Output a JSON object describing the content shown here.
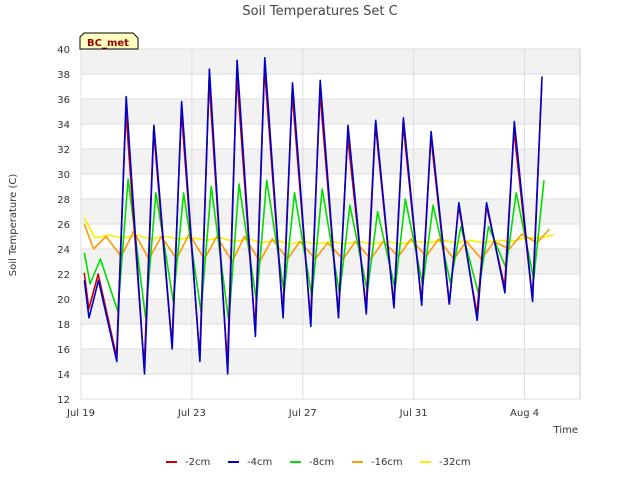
{
  "chart_data": {
    "type": "line",
    "title": "Soil Temperatures Set C",
    "xlabel": "Time",
    "ylabel": "Soil Temperature (C)",
    "badge": "BC_met",
    "ylim": [
      12,
      40
    ],
    "yticks": [
      12,
      14,
      16,
      18,
      20,
      22,
      24,
      26,
      28,
      30,
      32,
      34,
      36,
      38,
      40
    ],
    "xlim": [
      "2023-07-19",
      "2023-08-06"
    ],
    "xticks": [
      {
        "label": "Jul 19",
        "date": "2023-07-19"
      },
      {
        "label": "Jul 23",
        "date": "2023-07-23"
      },
      {
        "label": "Jul 27",
        "date": "2023-07-27"
      },
      {
        "label": "Jul 31",
        "date": "2023-07-31"
      },
      {
        "label": "Aug 4",
        "date": "2023-08-04"
      }
    ],
    "grid": true,
    "legend_position": "bottom",
    "daily_min_dates": [
      "2023-07-19",
      "2023-07-20",
      "2023-07-21",
      "2023-07-22",
      "2023-07-23",
      "2023-07-24",
      "2023-07-25",
      "2023-07-26",
      "2023-07-27",
      "2023-07-28",
      "2023-07-29",
      "2023-07-30",
      "2023-07-31",
      "2023-08-01",
      "2023-08-02",
      "2023-08-03",
      "2023-08-04",
      "2023-08-05"
    ],
    "daily_max_dates": [
      "2023-07-19",
      "2023-07-20",
      "2023-07-21",
      "2023-07-22",
      "2023-07-23",
      "2023-07-24",
      "2023-07-25",
      "2023-07-26",
      "2023-07-27",
      "2023-07-28",
      "2023-07-29",
      "2023-07-30",
      "2023-07-31",
      "2023-08-01",
      "2023-08-02",
      "2023-08-03",
      "2023-08-04",
      "2023-08-05"
    ],
    "series": [
      {
        "name": "-2cm",
        "color": "#cc0000",
        "daily_min": [
          19.2,
          15.4,
          14.5,
          16.3,
          15.4,
          14.8,
          17.5,
          18.8,
          18.3,
          18.8,
          19.3,
          19.5,
          19.8,
          19.6,
          18.8,
          21.0,
          20.0,
          21.5
        ],
        "daily_max": [
          22.0,
          35.0,
          33.5,
          35.0,
          37.5,
          38.0,
          38.5,
          36.5,
          36.5,
          33.0,
          34.0,
          34.0,
          33.0,
          27.5,
          27.5,
          33.5,
          37.0,
          36.0
        ]
      },
      {
        "name": "-4cm",
        "color": "#0000cc",
        "daily_min": [
          18.5,
          15.0,
          14.0,
          16.0,
          15.0,
          14.0,
          17.0,
          18.5,
          17.8,
          18.5,
          18.8,
          19.3,
          19.5,
          19.6,
          18.3,
          20.5,
          19.8,
          21.2
        ],
        "daily_max": [
          21.5,
          36.2,
          33.9,
          35.8,
          38.4,
          39.1,
          39.3,
          37.3,
          37.5,
          33.9,
          34.3,
          34.5,
          33.4,
          27.7,
          27.7,
          34.2,
          37.8,
          36.6
        ]
      },
      {
        "name": "-8cm",
        "color": "#00dd00",
        "daily_min": [
          21.2,
          19.0,
          18.5,
          19.8,
          19.0,
          18.2,
          19.8,
          20.5,
          20.2,
          20.4,
          20.6,
          20.8,
          21.1,
          21.3,
          20.5,
          22.5,
          21.6,
          23.0
        ],
        "daily_max": [
          23.2,
          29.6,
          28.5,
          28.5,
          29.0,
          29.2,
          29.5,
          28.5,
          28.8,
          27.5,
          27.0,
          28.0,
          27.5,
          25.8,
          25.8,
          28.5,
          29.5,
          29.2
        ]
      },
      {
        "name": "-16cm",
        "color": "#ff9900",
        "daily_min": [
          24.0,
          23.4,
          23.2,
          23.2,
          23.2,
          23.0,
          23.0,
          23.2,
          23.2,
          23.2,
          23.2,
          23.4,
          23.4,
          23.2,
          23.2,
          24.0,
          24.5,
          24.8
        ],
        "daily_max": [
          25.0,
          25.4,
          25.0,
          25.2,
          25.0,
          25.0,
          24.8,
          24.6,
          24.5,
          24.6,
          24.6,
          24.8,
          24.8,
          24.6,
          24.6,
          25.2,
          25.6,
          25.6
        ]
      },
      {
        "name": "-32cm",
        "color": "#ffee00",
        "daily_min": [
          24.9,
          24.9,
          24.8,
          24.8,
          24.7,
          24.6,
          24.5,
          24.4,
          24.4,
          24.4,
          24.4,
          24.4,
          24.5,
          24.5,
          24.5,
          24.6,
          24.9,
          25.0
        ],
        "daily_max": [
          25.1,
          25.1,
          25.0,
          24.9,
          24.9,
          24.8,
          24.7,
          24.6,
          24.6,
          24.6,
          24.6,
          24.6,
          24.7,
          24.7,
          24.7,
          24.9,
          25.1,
          25.2
        ]
      }
    ]
  }
}
